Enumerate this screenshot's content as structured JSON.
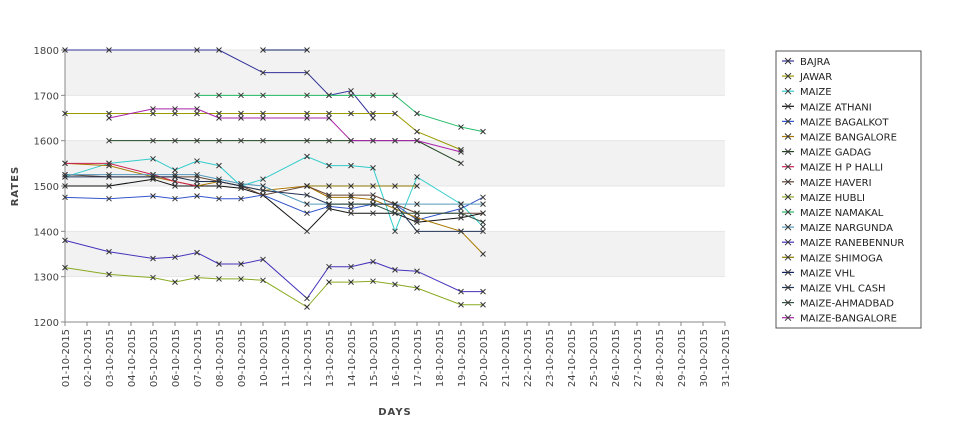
{
  "chart_data": {
    "type": "line",
    "xlabel": "DAYS",
    "ylabel": "RATES",
    "ylim": [
      1200,
      1800
    ],
    "yticks": [
      1200,
      1300,
      1400,
      1500,
      1600,
      1700,
      1800
    ],
    "grid": "alternating horizontal bands",
    "legend_position": "right",
    "categories": [
      "01-10-2015",
      "02-10-2015",
      "03-10-2015",
      "04-10-2015",
      "05-10-2015",
      "06-10-2015",
      "07-10-2015",
      "08-10-2015",
      "09-10-2015",
      "10-10-2015",
      "11-10-2015",
      "12-10-2015",
      "13-10-2015",
      "14-10-2015",
      "15-10-2015",
      "16-10-2015",
      "17-10-2015",
      "18-10-2015",
      "19-10-2015",
      "20-10-2015",
      "21-10-2015",
      "22-10-2015",
      "23-10-2015",
      "24-10-2015",
      "25-10-2015",
      "26-10-2015",
      "27-10-2015",
      "28-10-2015",
      "29-10-2015",
      "30-10-2015",
      "31-10-2015"
    ],
    "series": [
      {
        "name": "BAJRA",
        "color": "#333399",
        "values": [
          1800,
          null,
          1800,
          null,
          null,
          null,
          1800,
          1800,
          null,
          1750,
          null,
          1750,
          1700,
          1710,
          1650,
          null,
          null,
          null,
          null,
          null,
          null,
          null,
          null,
          null,
          null,
          null,
          null,
          null,
          null,
          null,
          null
        ]
      },
      {
        "name": "JAWAR",
        "color": "#999900",
        "values": [
          1660,
          null,
          1660,
          null,
          1660,
          1660,
          1660,
          1660,
          1660,
          1660,
          null,
          1660,
          1660,
          1660,
          1660,
          1660,
          1620,
          null,
          1580,
          null,
          null,
          null,
          null,
          null,
          null,
          null,
          null,
          null,
          null,
          null,
          null
        ]
      },
      {
        "name": "MAIZE",
        "color": "#33cccc",
        "values": [
          1520,
          null,
          1550,
          null,
          1560,
          1535,
          1555,
          1545,
          1500,
          1515,
          null,
          1565,
          1545,
          1545,
          1540,
          1400,
          1520,
          null,
          1460,
          1410,
          null,
          null,
          null,
          null,
          null,
          null,
          null,
          null,
          null,
          null,
          null
        ]
      },
      {
        "name": "MAIZE ATHANI",
        "color": "#111111",
        "values": [
          1500,
          null,
          1500,
          null,
          1515,
          1500,
          1500,
          1500,
          1495,
          1480,
          null,
          1400,
          1450,
          1440,
          1440,
          1440,
          1420,
          null,
          1430,
          1440,
          null,
          null,
          null,
          null,
          null,
          null,
          null,
          null,
          null,
          null,
          null
        ]
      },
      {
        "name": "MAIZE BAGALKOT",
        "color": "#3355cc",
        "values": [
          1475,
          null,
          1472,
          null,
          1478,
          1472,
          1478,
          1472,
          1472,
          1480,
          null,
          1440,
          1455,
          1450,
          1460,
          1460,
          1425,
          null,
          1450,
          1475,
          null,
          null,
          null,
          null,
          null,
          null,
          null,
          null,
          null,
          null,
          null
        ]
      },
      {
        "name": "MAIZE BANGALORE",
        "color": "#aa7700",
        "values": [
          1550,
          null,
          1545,
          null,
          1520,
          1510,
          1500,
          1510,
          1500,
          1490,
          null,
          1500,
          1475,
          1475,
          1470,
          1450,
          1430,
          null,
          1400,
          1350,
          null,
          null,
          null,
          null,
          null,
          null,
          null,
          null,
          null,
          null,
          null
        ]
      },
      {
        "name": "MAIZE GADAG",
        "color": "#224422",
        "values": [
          null,
          null,
          1600,
          null,
          1600,
          1600,
          1600,
          1600,
          1600,
          1600,
          null,
          1600,
          1600,
          1600,
          1600,
          1600,
          1600,
          null,
          1550,
          null,
          null,
          null,
          null,
          null,
          null,
          null,
          null,
          null,
          null,
          null,
          null
        ]
      },
      {
        "name": "MAIZE H P HALLI",
        "color": "#cc2255",
        "values": [
          1550,
          null,
          1550,
          null,
          1525,
          1510,
          1500,
          null,
          null,
          null,
          null,
          null,
          null,
          null,
          null,
          null,
          null,
          null,
          null,
          null,
          null,
          null,
          null,
          null,
          null,
          null,
          null,
          null,
          null,
          null,
          null
        ]
      },
      {
        "name": "MAIZE HAVERI",
        "color": "#664433",
        "values": [
          1525,
          null,
          1520,
          null,
          1520,
          1520,
          1520,
          1510,
          1500,
          1480,
          null,
          1500,
          1480,
          1480,
          1480,
          1460,
          1440,
          null,
          1440,
          1440,
          null,
          null,
          null,
          null,
          null,
          null,
          null,
          null,
          null,
          null,
          null
        ]
      },
      {
        "name": "MAIZE HUBLI",
        "color": "#88aa22",
        "values": [
          1320,
          null,
          1305,
          null,
          1298,
          1288,
          1298,
          1295,
          1295,
          1292,
          null,
          1233,
          1288,
          1288,
          1290,
          1283,
          1275,
          null,
          1238,
          1238,
          null,
          null,
          null,
          null,
          null,
          null,
          null,
          null,
          null,
          null,
          null
        ]
      },
      {
        "name": "MAIZE NAMAKAL",
        "color": "#22bb66",
        "values": [
          null,
          null,
          null,
          null,
          null,
          null,
          1700,
          1700,
          1700,
          1700,
          null,
          1700,
          1700,
          1700,
          1700,
          1700,
          1660,
          null,
          1630,
          1620,
          null,
          null,
          null,
          null,
          null,
          null,
          null,
          null,
          null,
          null,
          null
        ]
      },
      {
        "name": "MAIZE NARGUNDA",
        "color": "#5599bb",
        "values": [
          1525,
          null,
          1525,
          null,
          1525,
          1525,
          1525,
          1515,
          1505,
          1500,
          null,
          1460,
          1460,
          1460,
          1460,
          1460,
          1460,
          null,
          1460,
          1460,
          null,
          null,
          null,
          null,
          null,
          null,
          null,
          null,
          null,
          null,
          null
        ]
      },
      {
        "name": "MAIZE RANEBENNUR",
        "color": "#4433bb",
        "values": [
          1380,
          null,
          1355,
          null,
          1340,
          1343,
          1353,
          1328,
          1328,
          1338,
          null,
          1252,
          1322,
          1322,
          1333,
          1315,
          1312,
          null,
          1267,
          1267,
          null,
          null,
          null,
          null,
          null,
          null,
          null,
          null,
          null,
          null,
          null
        ]
      },
      {
        "name": "MAIZE SHIMOGA",
        "color": "#887700",
        "values": [
          null,
          null,
          null,
          null,
          null,
          null,
          null,
          null,
          null,
          null,
          null,
          1500,
          1500,
          1500,
          1500,
          1500,
          1500,
          null,
          null,
          null,
          null,
          null,
          null,
          null,
          null,
          null,
          null,
          null,
          null,
          null,
          null
        ]
      },
      {
        "name": "MAIZE VHL",
        "color": "#112266",
        "values": [
          null,
          null,
          null,
          null,
          null,
          null,
          null,
          null,
          null,
          1800,
          null,
          1800,
          null,
          null,
          null,
          null,
          null,
          null,
          null,
          null,
          null,
          null,
          null,
          null,
          null,
          null,
          null,
          null,
          null,
          null,
          null
        ]
      },
      {
        "name": "MAIZE VHL CASH",
        "color": "#223355",
        "values": [
          1520,
          null,
          1520,
          null,
          1520,
          1520,
          1510,
          1510,
          1500,
          1490,
          null,
          1480,
          1460,
          1460,
          1460,
          1460,
          1400,
          null,
          1400,
          1400,
          null,
          null,
          null,
          null,
          null,
          null,
          null,
          null,
          null,
          null,
          null
        ]
      },
      {
        "name": "MAIZE-AHMADBAD",
        "color": "#335544",
        "values": [
          null,
          null,
          null,
          null,
          null,
          null,
          null,
          null,
          null,
          null,
          null,
          null,
          1460,
          1460,
          1460,
          1440,
          1440,
          null,
          1440,
          1420,
          null,
          null,
          null,
          null,
          null,
          null,
          null,
          null,
          null,
          null,
          null
        ]
      },
      {
        "name": "MAIZE-BANGALORE",
        "color": "#aa22aa",
        "values": [
          null,
          null,
          1650,
          null,
          1670,
          1670,
          1670,
          1650,
          1650,
          1650,
          null,
          1650,
          1650,
          1600,
          1600,
          1600,
          1600,
          null,
          1575,
          null,
          null,
          null,
          null,
          null,
          null,
          null,
          null,
          null,
          null,
          null,
          null
        ]
      }
    ]
  }
}
